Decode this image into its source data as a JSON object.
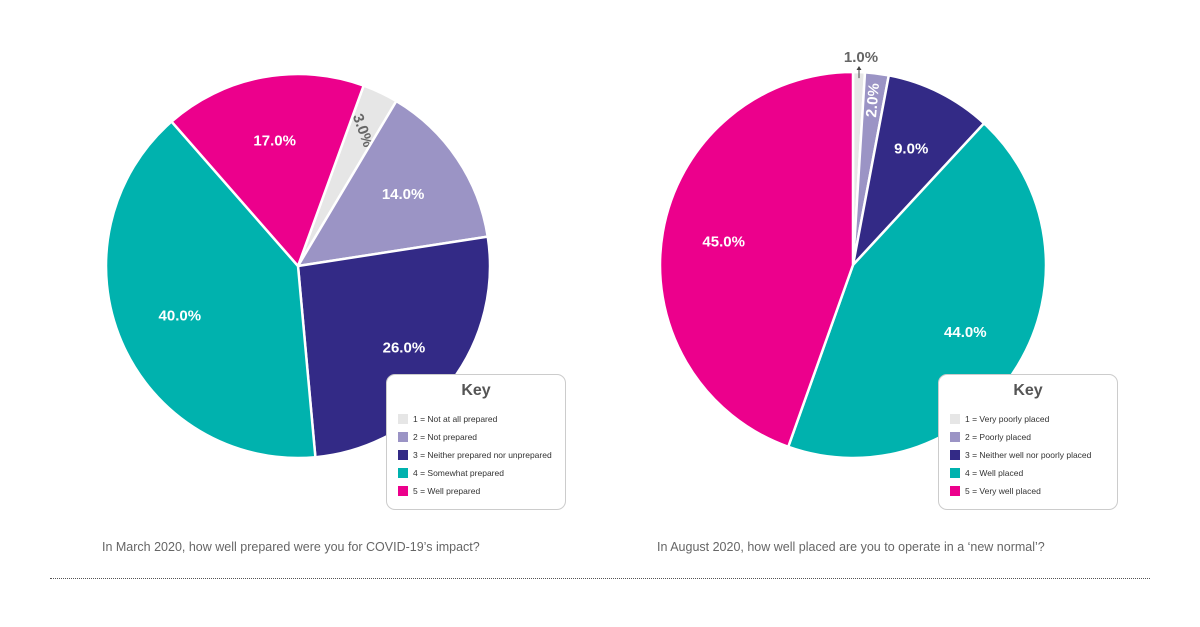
{
  "colors": {
    "c1": "#e6e6e6",
    "c2": "#9b94c5",
    "c3": "#332a86",
    "c4": "#00b2ae",
    "c5": "#ec008c",
    "label_light": "#ffffff",
    "label_dark": "#666666"
  },
  "chart_data": [
    {
      "type": "pie",
      "title": "",
      "caption": "In March 2020, how well prepared were you for COVID-19’s impact?",
      "slices": [
        {
          "label": "1 = Not at all prepared",
          "value": 3.0,
          "display": "3.0%",
          "color": "#e6e6e6"
        },
        {
          "label": "2 = Not prepared",
          "value": 14.0,
          "display": "14.0%",
          "color": "#9b94c5"
        },
        {
          "label": "3 = Neither prepared nor unprepared",
          "value": 26.0,
          "display": "26.0%",
          "color": "#332a86"
        },
        {
          "label": "4 = Somewhat prepared",
          "value": 40.0,
          "display": "40.0%",
          "color": "#00b2ae"
        },
        {
          "label": "5 = Well prepared",
          "value": 17.0,
          "display": "17.0%",
          "color": "#ec008c"
        }
      ],
      "legend": {
        "title": "Key",
        "placement": "bottom-right"
      }
    },
    {
      "type": "pie",
      "title": "",
      "caption": "In August 2020, how well placed are you to operate in a ‘new normal’?",
      "slices": [
        {
          "label": "1 = Very poorly placed",
          "value": 1.0,
          "display": "1.0%",
          "color": "#e6e6e6"
        },
        {
          "label": "2 = Poorly placed",
          "value": 2.0,
          "display": "2.0%",
          "color": "#9b94c5"
        },
        {
          "label": "3 = Neither well nor poorly placed",
          "value": 9.0,
          "display": "9.0%",
          "color": "#332a86"
        },
        {
          "label": "4 = Well placed",
          "value": 44.0,
          "display": "44.0%",
          "color": "#00b2ae"
        },
        {
          "label": "5 = Very well placed",
          "value": 45.0,
          "display": "45.0%",
          "color": "#ec008c"
        }
      ],
      "legend": {
        "title": "Key",
        "placement": "bottom-right"
      }
    }
  ]
}
